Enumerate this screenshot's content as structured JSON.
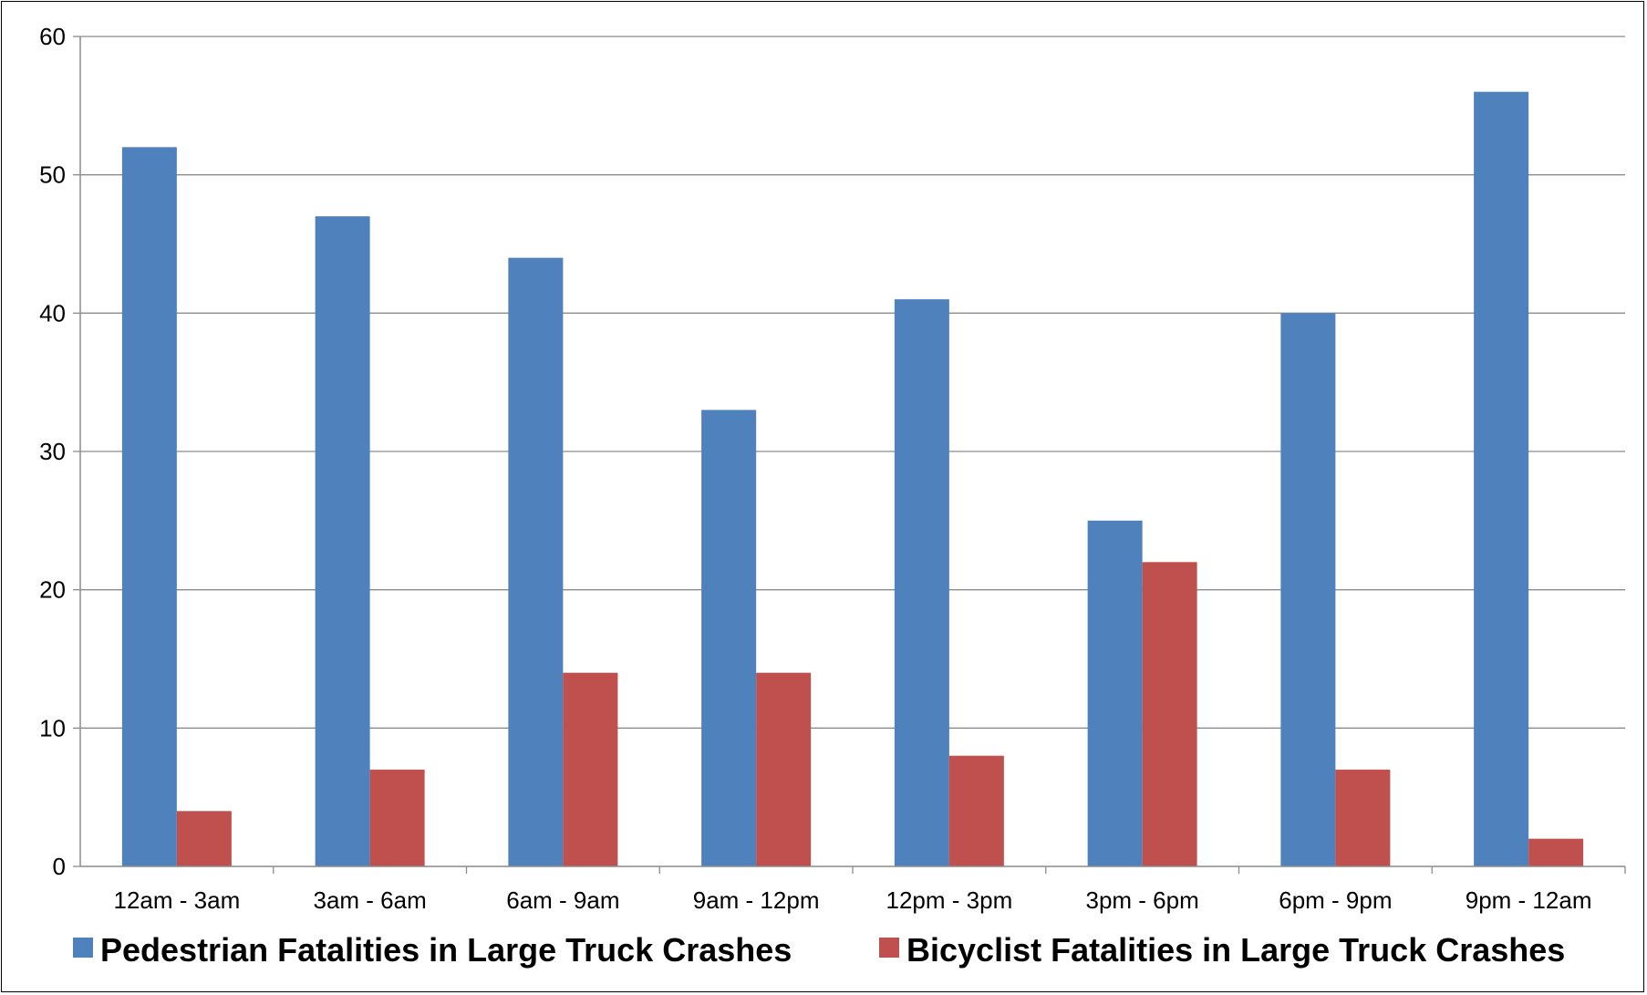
{
  "chart_data": {
    "type": "bar",
    "title": "",
    "xlabel": "",
    "ylabel": "",
    "categories": [
      "12am - 3am",
      "3am - 6am",
      "6am - 9am",
      "9am - 12pm",
      "12pm - 3pm",
      "3pm - 6pm",
      "6pm - 9pm",
      "9pm - 12am"
    ],
    "series": [
      {
        "name": "Pedestrian Fatalities in Large Truck Crashes",
        "color": "#4F81BD",
        "values": [
          52,
          47,
          44,
          33,
          41,
          25,
          40,
          56
        ]
      },
      {
        "name": "Bicyclist Fatalities in Large Truck Crashes",
        "color": "#C0504D",
        "values": [
          4,
          7,
          14,
          14,
          8,
          22,
          7,
          2
        ]
      }
    ],
    "ylim": [
      0,
      60
    ],
    "yticks": [
      0,
      10,
      20,
      30,
      40,
      50,
      60
    ],
    "grid": true,
    "legend_position": "bottom"
  }
}
